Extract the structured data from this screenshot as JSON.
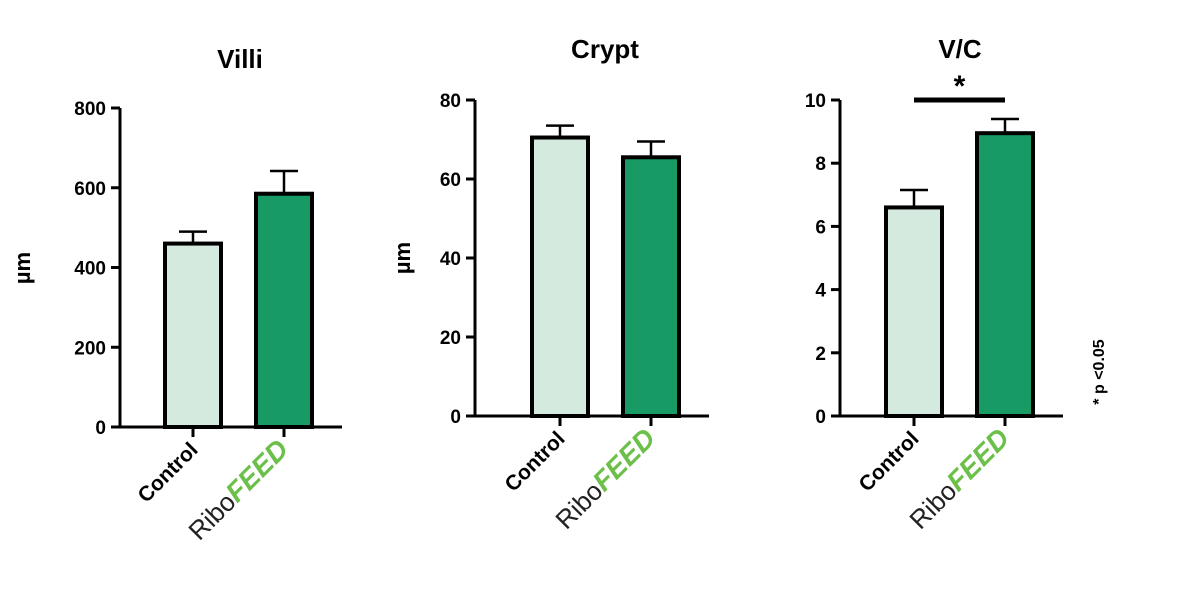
{
  "colors": {
    "control": "#d4eadf",
    "ribofeed": "#179a63",
    "ribofeed_logo": "#6cc04a",
    "stroke": "#000000"
  },
  "note": "* p <0.05",
  "chart_data": [
    {
      "type": "bar",
      "title": "Villi",
      "ylabel": "µm",
      "ylim": [
        0,
        800
      ],
      "yticks": [
        "0",
        "200",
        "400",
        "600",
        "800"
      ],
      "categories": [
        "Control",
        "RiboFEED"
      ],
      "category_logo": {
        "ribo": "Ribo",
        "feed": "FEED"
      },
      "values": [
        460,
        585
      ],
      "errors": [
        30,
        57
      ]
    },
    {
      "type": "bar",
      "title": "Crypt",
      "ylabel": "µm",
      "ylim": [
        0,
        80
      ],
      "yticks": [
        "0",
        "20",
        "40",
        "60",
        "80"
      ],
      "categories": [
        "Control",
        "RiboFEED"
      ],
      "category_logo": {
        "ribo": "Ribo",
        "feed": "FEED"
      },
      "values": [
        70.5,
        65.5
      ],
      "errors": [
        3,
        4
      ]
    },
    {
      "type": "bar",
      "title": "V/C",
      "ylabel": "",
      "ylim": [
        0,
        10
      ],
      "yticks": [
        "0",
        "2",
        "4",
        "6",
        "8",
        "10"
      ],
      "categories": [
        "Control",
        "RiboFEED"
      ],
      "category_logo": {
        "ribo": "Ribo",
        "feed": "FEED"
      },
      "values": [
        6.6,
        8.95
      ],
      "errors": [
        0.55,
        0.45
      ],
      "significance": {
        "label": "*",
        "between": [
          0,
          1
        ]
      }
    }
  ]
}
